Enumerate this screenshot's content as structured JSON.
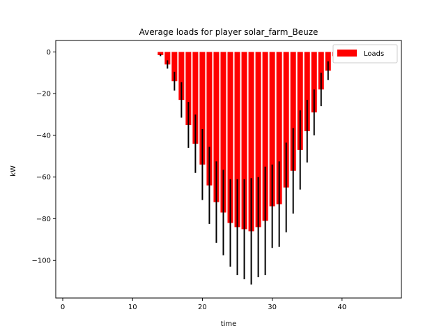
{
  "chart_data": {
    "type": "bar",
    "title": "Average loads for player solar_farm_Beuze",
    "xlabel": "time",
    "ylabel": "kW",
    "xlim": [
      -1,
      48.5
    ],
    "ylim": [
      -118,
      5.5
    ],
    "xticks": [
      0,
      10,
      20,
      30,
      40
    ],
    "yticks": [
      0,
      -20,
      -40,
      -60,
      -80,
      -100
    ],
    "legend": {
      "label": "Loads",
      "position": "top-right"
    },
    "colors": {
      "bar": "#ff0000",
      "error": "#000000"
    },
    "x": [
      14,
      15,
      16,
      17,
      18,
      19,
      20,
      21,
      22,
      23,
      24,
      25,
      26,
      27,
      28,
      29,
      30,
      31,
      32,
      33,
      34,
      35,
      36,
      37,
      38,
      39
    ],
    "values": [
      -1.5,
      -6,
      -14,
      -23,
      -35,
      -44,
      -54,
      -64,
      -72,
      -77,
      -82,
      -84,
      -85,
      -86,
      -84,
      -81,
      -74,
      -73,
      -65,
      -57,
      -47,
      -38,
      -29,
      -18,
      -9,
      -2
    ],
    "errors": [
      0.5,
      2,
      4.5,
      8.5,
      11,
      14,
      17,
      18.5,
      19.5,
      20.5,
      21,
      23,
      24,
      25.5,
      24,
      26,
      20,
      20.5,
      21.5,
      20.5,
      19,
      15,
      11,
      8,
      4.5,
      2.5
    ]
  }
}
